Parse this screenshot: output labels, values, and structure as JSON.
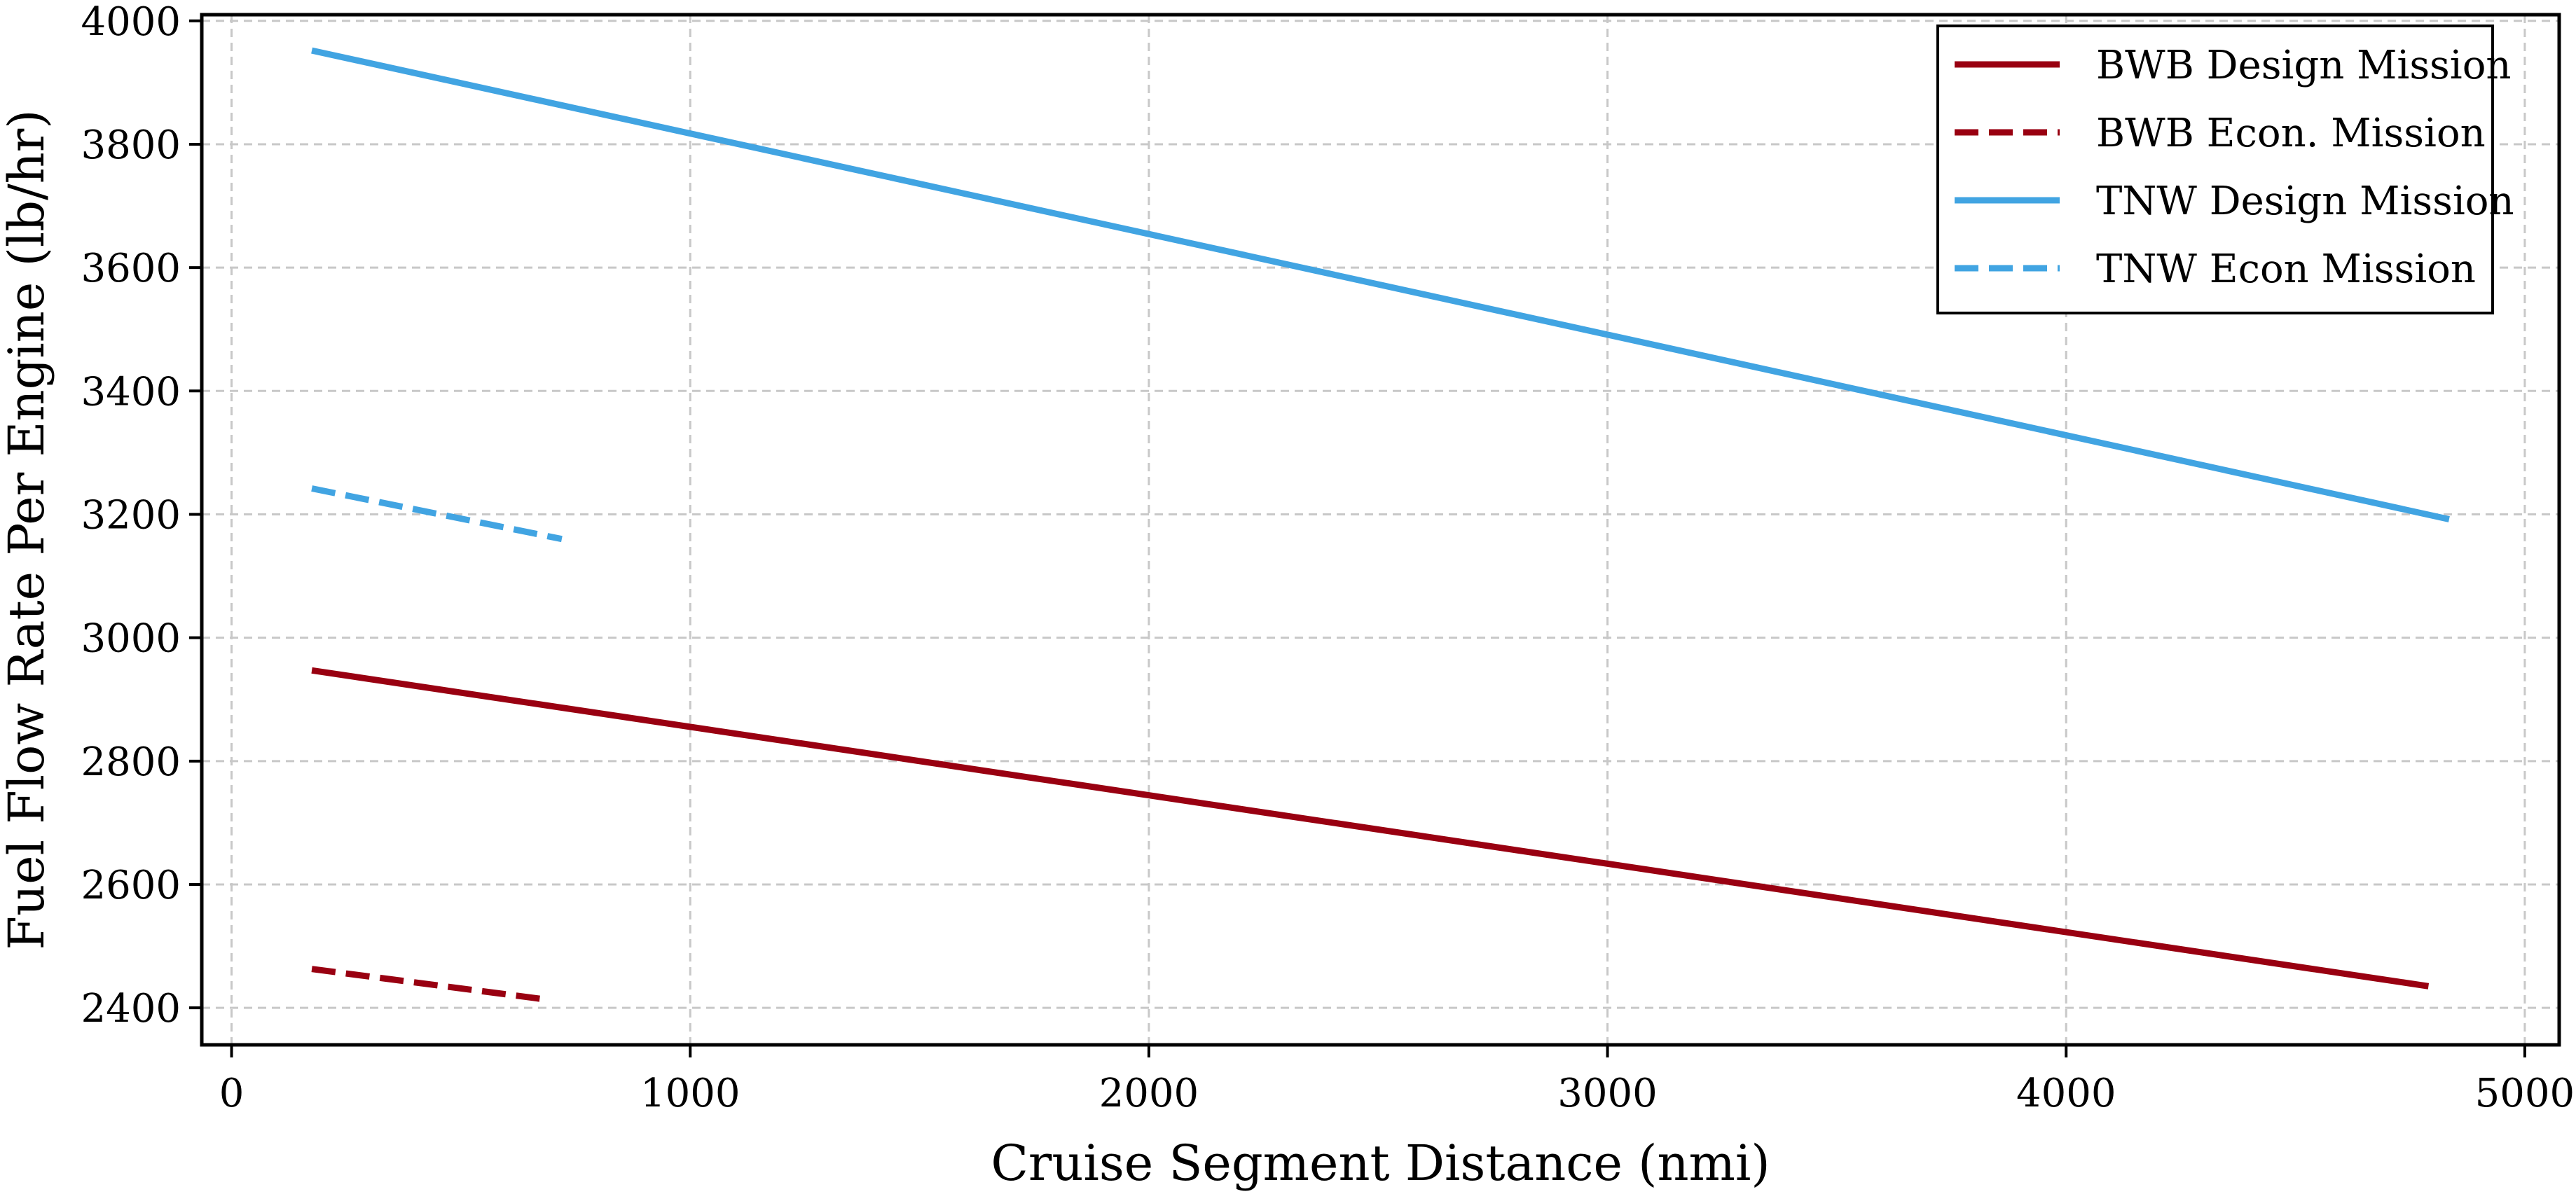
{
  "chart_data": {
    "type": "line",
    "title": "",
    "xlabel": "Cruise Segment Distance (nmi)",
    "ylabel": "Fuel Flow Rate Per Engine (lb/hr)",
    "xlim": [
      -65,
      5075
    ],
    "ylim": [
      2340,
      4010
    ],
    "xticks": [
      0,
      1000,
      2000,
      3000,
      4000,
      5000
    ],
    "yticks": [
      2400,
      2600,
      2800,
      3000,
      3200,
      3400,
      3600,
      3800,
      4000
    ],
    "xtick_labels": [
      "0",
      "1000",
      "2000",
      "3000",
      "4000",
      "5000"
    ],
    "ytick_labels": [
      "2400",
      "2600",
      "2800",
      "3000",
      "3200",
      "3400",
      "3600",
      "3800",
      "4000"
    ],
    "grid": true,
    "legend_position": "top-right",
    "series": [
      {
        "name": "BWB Design Mission",
        "color": "#990011",
        "dash": "solid",
        "x": [
          175,
          4790
        ],
        "y": [
          2947,
          2435
        ]
      },
      {
        "name": "BWB Econ. Mission",
        "color": "#990011",
        "dash": "dashed",
        "x": [
          175,
          680
        ],
        "y": [
          2463,
          2414
        ]
      },
      {
        "name": "TNW Design Mission",
        "color": "#41a4e2",
        "dash": "solid",
        "x": [
          175,
          4835
        ],
        "y": [
          3952,
          3192
        ]
      },
      {
        "name": "TNW Econ Mission",
        "color": "#41a4e2",
        "dash": "dashed",
        "x": [
          175,
          720
        ],
        "y": [
          3242,
          3160
        ]
      }
    ]
  }
}
